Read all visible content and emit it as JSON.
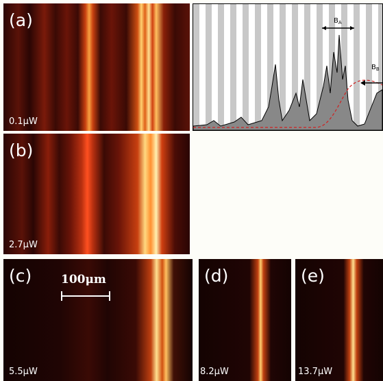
{
  "panels": [
    {
      "label": "(a)",
      "power": "0.1μW"
    },
    {
      "label": "(b)",
      "power": "2.7μW"
    },
    {
      "label": "(c)",
      "power": "5.5μW",
      "scale_bar": "100μm"
    },
    {
      "label": "(d)",
      "power": "8.2μW"
    },
    {
      "label": "(e)",
      "power": "13.7μW"
    }
  ],
  "spectrum": {
    "annotations": [
      {
        "text": "B",
        "subscript": "A"
      },
      {
        "text": "B",
        "subscript": "B"
      }
    ]
  }
}
